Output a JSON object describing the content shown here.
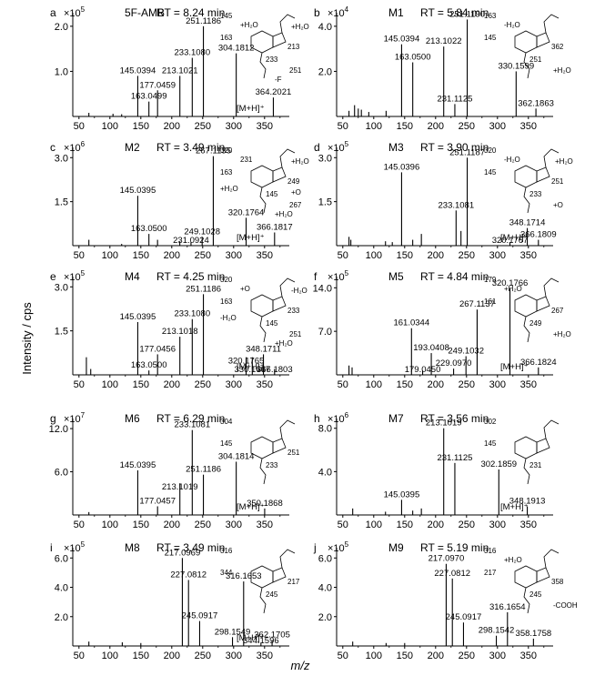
{
  "figure": {
    "ylabel": "Intensity / cps",
    "xlabel": "m/z"
  },
  "chart_data": [
    {
      "id": "a",
      "type": "bar",
      "letter": "a",
      "compound": "5F-AMB",
      "rt": "RT = 8.24 min",
      "exp_base": "×10",
      "exp_pow": "5",
      "xlim": [
        40,
        390
      ],
      "ylim": [
        0,
        2.3
      ],
      "xticks": [
        50,
        100,
        150,
        200,
        250,
        300,
        350
      ],
      "yticks": [
        "2.0",
        "1.0"
      ],
      "ytick_vals": [
        2.0,
        1.0
      ],
      "peaks": [
        {
          "mz": 66,
          "y": 0.08
        },
        {
          "mz": 105,
          "y": 0.06
        },
        {
          "mz": 119,
          "y": 0.05
        },
        {
          "mz": 145.0394,
          "y": 0.9,
          "label": "145.0394"
        },
        {
          "mz": 163.0499,
          "y": 0.33,
          "label": "163.0499"
        },
        {
          "mz": 177.0459,
          "y": 0.58,
          "label": "177.0459"
        },
        {
          "mz": 213.1021,
          "y": 0.9,
          "label": "213.1021"
        },
        {
          "mz": 233.108,
          "y": 1.3,
          "label": "233.1080"
        },
        {
          "mz": 251.1186,
          "y": 2.0,
          "label": "251.1186"
        },
        {
          "mz": 304.1812,
          "y": 1.4,
          "label": "304.1812"
        },
        {
          "mz": 364.2021,
          "y": 0.42,
          "label": "364.2021"
        }
      ],
      "annotation": "[M+H]⁺",
      "structure_labels": [
        "145",
        "163",
        "233",
        "213",
        "251",
        "+H₂O",
        "+H₂O",
        "-F"
      ]
    },
    {
      "id": "b",
      "type": "bar",
      "letter": "b",
      "compound": "M1",
      "rt": "RT = 5.84 min",
      "exp_base": "×10",
      "exp_pow": "4",
      "xlim": [
        40,
        390
      ],
      "ylim": [
        0,
        4.6
      ],
      "xticks": [
        50,
        100,
        150,
        200,
        250,
        300,
        350
      ],
      "yticks": [
        "4.0",
        "2.0"
      ],
      "ytick_vals": [
        4.0,
        2.0
      ],
      "peaks": [
        {
          "mz": 60,
          "y": 0.25
        },
        {
          "mz": 69,
          "y": 0.5
        },
        {
          "mz": 75,
          "y": 0.35
        },
        {
          "mz": 80,
          "y": 0.3
        },
        {
          "mz": 92,
          "y": 0.2
        },
        {
          "mz": 120,
          "y": 0.25
        },
        {
          "mz": 145.0394,
          "y": 3.2,
          "label": "145.0394"
        },
        {
          "mz": 163.05,
          "y": 2.4,
          "label": "163.0500"
        },
        {
          "mz": 213.1022,
          "y": 3.1,
          "label": "213.1022"
        },
        {
          "mz": 231.1125,
          "y": 0.55,
          "label": "231.1125"
        },
        {
          "mz": 251.119,
          "y": 4.3,
          "label": "251.1190"
        },
        {
          "mz": 330.1599,
          "y": 2.0,
          "label": "330.1599"
        },
        {
          "mz": 362.1863,
          "y": 0.35,
          "label": "362.1863"
        }
      ],
      "annotation": "",
      "structure_labels": [
        "163",
        "145",
        "251",
        "362",
        "+H₂O",
        "-H₂O"
      ]
    },
    {
      "id": "c",
      "type": "bar",
      "letter": "c",
      "compound": "M2",
      "rt": "RT = 3.49 min",
      "exp_base": "×10",
      "exp_pow": "6",
      "xlim": [
        40,
        390
      ],
      "ylim": [
        0,
        3.35
      ],
      "xticks": [
        50,
        100,
        150,
        200,
        250,
        300,
        350
      ],
      "yticks": [
        "3.0",
        "1.5"
      ],
      "ytick_vals": [
        3.0,
        1.5
      ],
      "peaks": [
        {
          "mz": 66,
          "y": 0.2
        },
        {
          "mz": 119,
          "y": 0.06
        },
        {
          "mz": 145.0395,
          "y": 1.7,
          "label": "145.0395"
        },
        {
          "mz": 163.05,
          "y": 0.4,
          "label": "163.0500"
        },
        {
          "mz": 177,
          "y": 0.2
        },
        {
          "mz": 213,
          "y": 0.15
        },
        {
          "mz": 231.0924,
          "y": 0.12,
          "label": "231.0924"
        },
        {
          "mz": 249.1028,
          "y": 0.3,
          "label": "249.1028"
        },
        {
          "mz": 267.1135,
          "y": 3.05,
          "label": "267.1135"
        },
        {
          "mz": 320.1764,
          "y": 0.95,
          "label": "320.1764"
        },
        {
          "mz": 366.1817,
          "y": 0.45,
          "label": "366.1817"
        }
      ],
      "annotation": "[M+H]⁺",
      "structure_labels": [
        "320",
        "163",
        "145",
        "249",
        "267",
        "231",
        "+H₂O",
        "+H₂O",
        "+H₂O",
        "+O"
      ]
    },
    {
      "id": "d",
      "type": "bar",
      "letter": "d",
      "compound": "M3",
      "rt": "RT = 3.90 min",
      "exp_base": "×10",
      "exp_pow": "5",
      "xlim": [
        40,
        390
      ],
      "ylim": [
        0,
        3.35
      ],
      "xticks": [
        50,
        100,
        150,
        200,
        250,
        300,
        350
      ],
      "yticks": [
        "3.0",
        "1.5"
      ],
      "ytick_vals": [
        3.0,
        1.5
      ],
      "peaks": [
        {
          "mz": 60,
          "y": 0.3
        },
        {
          "mz": 63,
          "y": 0.2
        },
        {
          "mz": 119,
          "y": 0.15
        },
        {
          "mz": 130,
          "y": 0.12
        },
        {
          "mz": 145.0396,
          "y": 2.5,
          "label": "145.0396"
        },
        {
          "mz": 163,
          "y": 0.2
        },
        {
          "mz": 177,
          "y": 0.4
        },
        {
          "mz": 233.1081,
          "y": 1.2,
          "label": "233.1081"
        },
        {
          "mz": 241,
          "y": 0.5
        },
        {
          "mz": 251.1187,
          "y": 3.0,
          "label": "251.1187"
        },
        {
          "mz": 320.1767,
          "y": 0.12,
          "label": "320.1767"
        },
        {
          "mz": 348.1714,
          "y": 0.6,
          "label": "348.1714"
        },
        {
          "mz": 366.1809,
          "y": 0.2,
          "label": "366.1809"
        }
      ],
      "annotation": "[M+H]⁺",
      "structure_labels": [
        "320",
        "145",
        "233",
        "251",
        "+O",
        "-H₂O",
        "+H₂O"
      ]
    },
    {
      "id": "e",
      "type": "bar",
      "letter": "e",
      "compound": "M4",
      "rt": "RT = 4.25 min",
      "exp_base": "×10",
      "exp_pow": "5",
      "xlim": [
        40,
        390
      ],
      "ylim": [
        0,
        3.35
      ],
      "xticks": [
        50,
        100,
        150,
        200,
        250,
        300,
        350
      ],
      "yticks": [
        "3.0",
        "1.5"
      ],
      "ytick_vals": [
        3.0,
        1.5
      ],
      "peaks": [
        {
          "mz": 62,
          "y": 0.6
        },
        {
          "mz": 69,
          "y": 0.2
        },
        {
          "mz": 145.0395,
          "y": 1.8,
          "label": "145.0395"
        },
        {
          "mz": 163.05,
          "y": 0.15,
          "label": "163.0500"
        },
        {
          "mz": 177.0456,
          "y": 0.7,
          "label": "177.0456"
        },
        {
          "mz": 213.1018,
          "y": 1.3,
          "label": "213.1018"
        },
        {
          "mz": 233.108,
          "y": 1.9,
          "label": "233.1080"
        },
        {
          "mz": 251.1186,
          "y": 2.75,
          "label": "251.1186"
        },
        {
          "mz": 320.1765,
          "y": 0.6,
          "label": "320.1765"
        },
        {
          "mz": 330.1607,
          "y": 0.6,
          "label": "330.1607"
        },
        {
          "mz": 348.1711,
          "y": 0.7,
          "label": "348.1711"
        },
        {
          "mz": 366.1803,
          "y": 0.2,
          "label": "366.1803"
        }
      ],
      "annotation": "[M+H]⁺",
      "structure_labels": [
        "320",
        "163",
        "145",
        "233",
        "251",
        "+O",
        "-H₂O",
        "+H₂O",
        "-H₂O"
      ]
    },
    {
      "id": "f",
      "type": "bar",
      "letter": "f",
      "compound": "M5",
      "rt": "RT = 4.84 min",
      "exp_base": "×10",
      "exp_pow": "5",
      "xlim": [
        40,
        390
      ],
      "ylim": [
        0,
        15.8
      ],
      "xticks": [
        50,
        100,
        150,
        200,
        250,
        300,
        350
      ],
      "yticks": [
        "14.0",
        "7.0"
      ],
      "ytick_vals": [
        14.0,
        7.0
      ],
      "peaks": [
        {
          "mz": 60,
          "y": 1.5
        },
        {
          "mz": 65,
          "y": 1.2
        },
        {
          "mz": 161.0344,
          "y": 7.5,
          "label": "161.0344"
        },
        {
          "mz": 179.045,
          "y": 0.7,
          "label": "179.0450"
        },
        {
          "mz": 193.0408,
          "y": 3.5,
          "label": "193.0408"
        },
        {
          "mz": 229.097,
          "y": 1.0,
          "label": "229.0970"
        },
        {
          "mz": 249.1032,
          "y": 3.0,
          "label": "249.1032"
        },
        {
          "mz": 267.1137,
          "y": 10.5,
          "label": "267.1137"
        },
        {
          "mz": 320.1766,
          "y": 13.9,
          "label": "320.1766"
        },
        {
          "mz": 366.1824,
          "y": 1.2,
          "label": "366.1824"
        }
      ],
      "annotation": "[M+H]⁺",
      "structure_labels": [
        "179",
        "161",
        "249",
        "267",
        "+H₂O",
        "+H₂O"
      ]
    },
    {
      "id": "g",
      "type": "bar",
      "letter": "g",
      "compound": "M6",
      "rt": "RT = 6.29 min",
      "exp_base": "×10",
      "exp_pow": "7",
      "xlim": [
        40,
        390
      ],
      "ylim": [
        0,
        13.4
      ],
      "xticks": [
        50,
        100,
        150,
        200,
        250,
        300,
        350
      ],
      "yticks": [
        "12.0",
        "6.0"
      ],
      "ytick_vals": [
        12.0,
        6.0
      ],
      "peaks": [
        {
          "mz": 66,
          "y": 0.4
        },
        {
          "mz": 145.0395,
          "y": 6.2,
          "label": "145.0395"
        },
        {
          "mz": 177.0457,
          "y": 1.2,
          "label": "177.0457"
        },
        {
          "mz": 213.1019,
          "y": 4.4,
          "label": "213.1019"
        },
        {
          "mz": 233.1081,
          "y": 11.8,
          "label": "233.1081"
        },
        {
          "mz": 251.1186,
          "y": 5.6,
          "label": "251.1186"
        },
        {
          "mz": 304.1814,
          "y": 7.4,
          "label": "304.1814"
        },
        {
          "mz": 350.1868,
          "y": 0.9,
          "label": "350.1868"
        }
      ],
      "annotation": "[M+H]⁺",
      "structure_labels": [
        "304",
        "145",
        "233",
        "251"
      ]
    },
    {
      "id": "h",
      "type": "bar",
      "letter": "h",
      "compound": "M7",
      "rt": "RT = 3.56 min",
      "exp_base": "×10",
      "exp_pow": "6",
      "xlim": [
        40,
        390
      ],
      "ylim": [
        0,
        8.9
      ],
      "xticks": [
        50,
        100,
        150,
        200,
        250,
        300,
        350
      ],
      "yticks": [
        "8.0",
        "4.0"
      ],
      "ytick_vals": [
        8.0,
        4.0
      ],
      "peaks": [
        {
          "mz": 66,
          "y": 0.6
        },
        {
          "mz": 119,
          "y": 0.3
        },
        {
          "mz": 145.0395,
          "y": 1.4,
          "label": "145.0395"
        },
        {
          "mz": 163,
          "y": 0.4
        },
        {
          "mz": 177,
          "y": 0.6
        },
        {
          "mz": 213.1019,
          "y": 8.0,
          "label": "213.1019"
        },
        {
          "mz": 231.1125,
          "y": 4.8,
          "label": "231.1125"
        },
        {
          "mz": 302.1859,
          "y": 4.2,
          "label": "302.1859"
        },
        {
          "mz": 348.1913,
          "y": 0.8,
          "label": "348.1913"
        }
      ],
      "annotation": "[M+H]⁺",
      "structure_labels": [
        "302",
        "145",
        "231"
      ]
    },
    {
      "id": "i",
      "type": "bar",
      "letter": "i",
      "compound": "M8",
      "rt": "RT = 3.49 min",
      "exp_base": "×10",
      "exp_pow": "5",
      "xlim": [
        40,
        390
      ],
      "ylim": [
        0,
        6.7
      ],
      "xticks": [
        50,
        100,
        150,
        200,
        250,
        300,
        350
      ],
      "yticks": [
        "6.0",
        "4.0",
        "2.0"
      ],
      "ytick_vals": [
        6.0,
        4.0,
        2.0
      ],
      "peaks": [
        {
          "mz": 66,
          "y": 0.3
        },
        {
          "mz": 120,
          "y": 0.25
        },
        {
          "mz": 150,
          "y": 0.2
        },
        {
          "mz": 217.0969,
          "y": 6.0,
          "label": "217.0969"
        },
        {
          "mz": 227.0812,
          "y": 4.5,
          "label": "227.0812"
        },
        {
          "mz": 245.0917,
          "y": 1.7,
          "label": "245.0917"
        },
        {
          "mz": 298.1549,
          "y": 0.6,
          "label": "298.1549"
        },
        {
          "mz": 316.1653,
          "y": 4.4,
          "label": "316.1653"
        },
        {
          "mz": 344.1596,
          "y": 0.2,
          "label": "344.1596"
        },
        {
          "mz": 362.1705,
          "y": 0.4,
          "label": "362.1705"
        }
      ],
      "annotation": "[M+H]⁺",
      "structure_labels": [
        "316",
        "344",
        "245",
        "217"
      ]
    },
    {
      "id": "j",
      "type": "bar",
      "letter": "j",
      "compound": "M9",
      "rt": "RT = 5.19 min",
      "exp_base": "×10",
      "exp_pow": "5",
      "xlim": [
        40,
        390
      ],
      "ylim": [
        0,
        6.7
      ],
      "xticks": [
        50,
        100,
        150,
        200,
        250,
        300,
        350
      ],
      "yticks": [
        "6.0",
        "4.0",
        "2.0"
      ],
      "ytick_vals": [
        6.0,
        4.0,
        2.0
      ],
      "peaks": [
        {
          "mz": 66,
          "y": 0.3
        },
        {
          "mz": 120,
          "y": 0.2
        },
        {
          "mz": 150,
          "y": 0.2
        },
        {
          "mz": 217.097,
          "y": 5.6,
          "label": "217.0970"
        },
        {
          "mz": 227.0812,
          "y": 4.6,
          "label": "227.0812"
        },
        {
          "mz": 245.0917,
          "y": 1.6,
          "label": "245.0917"
        },
        {
          "mz": 298.1542,
          "y": 0.7,
          "label": "298.1542"
        },
        {
          "mz": 316.1654,
          "y": 2.3,
          "label": "316.1654"
        },
        {
          "mz": 358.1758,
          "y": 0.5,
          "label": "358.1758"
        }
      ],
      "annotation": "",
      "structure_labels": [
        "316",
        "217",
        "245",
        "358",
        "-COOH",
        "+H₂O"
      ]
    }
  ]
}
